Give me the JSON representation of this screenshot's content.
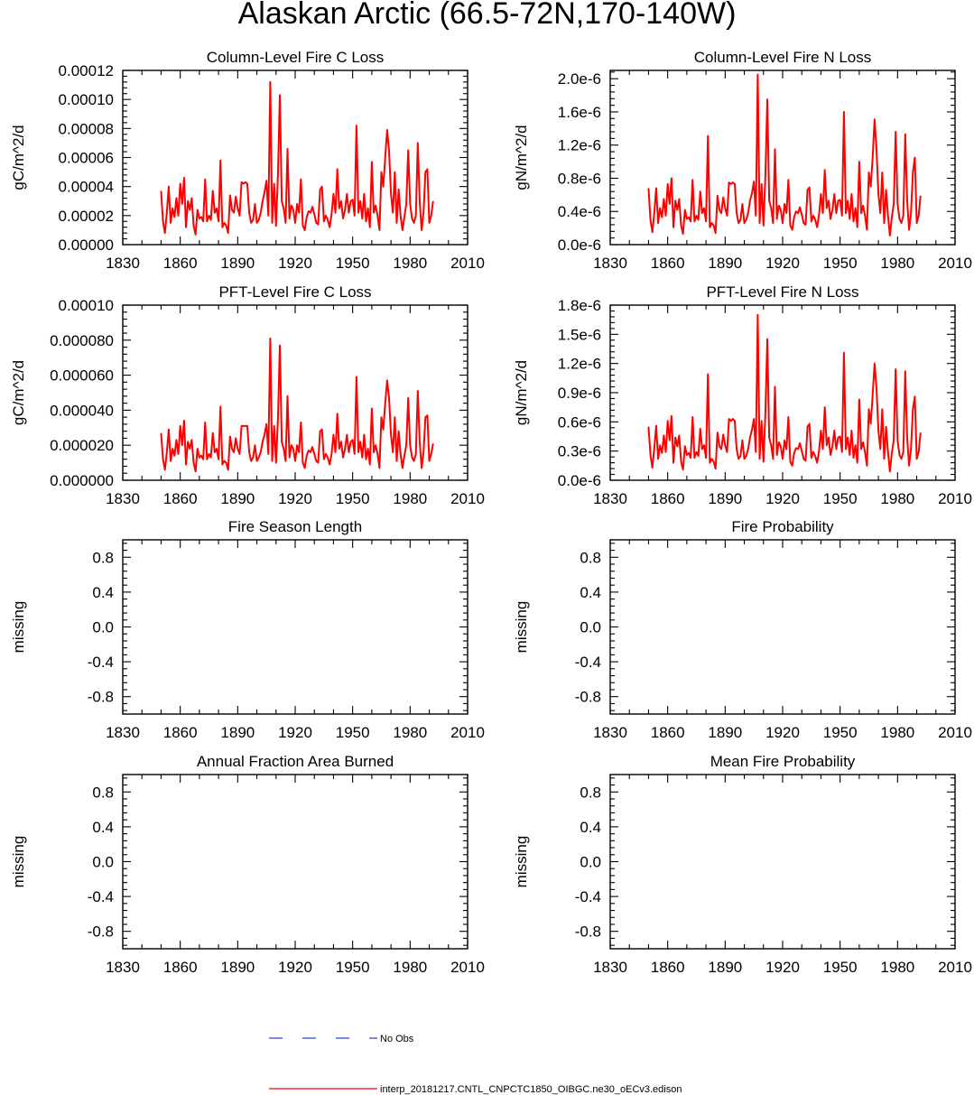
{
  "title": "Alaskan Arctic (66.5-72N,170-140W)",
  "colors": {
    "model_line": "#ff0000",
    "obs_line": "#2e44e6",
    "axis": "#000000"
  },
  "legend": {
    "obs_label": "No Obs",
    "model_label": "interp_20181217.CNTL_CNPCTC1850_OIBGC.ne30_oECv3.edison"
  },
  "chart_data": [
    {
      "type": "line",
      "title": "Column-Level Fire C Loss",
      "ylabel": "gC/m^2/d",
      "xlim": [
        1830,
        2010
      ],
      "x_ticks": [
        "1830",
        "1860",
        "1890",
        "1920",
        "1950",
        "1980",
        "2010"
      ],
      "ylim": [
        0,
        0.00012
      ],
      "y_ticks": [
        0,
        2e-05,
        4e-05,
        6e-05,
        8e-05,
        0.0001,
        0.00012
      ],
      "y_tick_labels": [
        "0.00000",
        "0.00002",
        "0.00004",
        "0.00006",
        "0.00008",
        "0.00010",
        "0.00012"
      ],
      "x_start": 1850,
      "series": [
        {
          "name": "interp_20181217.CNTL_CNPCTC1850_OIBGC.ne30_oECv3.edison",
          "values": [
            3.7e-05,
            1.6e-05,
            8e-06,
            2.2e-05,
            4e-05,
            1.5e-05,
            2.5e-05,
            1.9e-05,
            3.2e-05,
            2e-05,
            4.2e-05,
            2.8e-05,
            4.6e-05,
            1.2e-05,
            3e-05,
            2.4e-05,
            3.2e-05,
            1.3e-05,
            7e-06,
            2.4e-05,
            1.8e-05,
            1.9e-05,
            1.6e-05,
            4.5e-05,
            1.6e-05,
            2e-05,
            1.7e-05,
            3.7e-05,
            2.2e-05,
            2.5e-05,
            1.6e-05,
            5.8e-05,
            1.2e-05,
            1.5e-05,
            1.3e-05,
            8e-06,
            3.4e-05,
            2.4e-05,
            2.2e-05,
            3.3e-05,
            2.5e-05,
            2e-05,
            4.3e-05,
            4.2e-05,
            4.3e-05,
            4.2e-05,
            2.2e-05,
            1.5e-05,
            1.7e-05,
            2.8e-05,
            1.5e-05,
            1.7e-05,
            2.2e-05,
            3e-05,
            3.6e-05,
            4.4e-05,
            2e-05,
            0.000112,
            1.5e-05,
            4.2e-05,
            1.3e-05,
            4.8e-05,
            0.000103,
            3e-05,
            2.5e-05,
            1.5e-05,
            6.6e-05,
            1.8e-05,
            2.7e-05,
            2.4e-05,
            1.5e-05,
            2.8e-05,
            2.2e-05,
            4.5e-05,
            1.3e-05,
            1e-05,
            1.9e-05,
            2.3e-05,
            2.2e-05,
            2.6e-05,
            2.1e-05,
            1.5e-05,
            1.4e-05,
            3.8e-05,
            4e-05,
            1.6e-05,
            2e-05,
            1.7e-05,
            1.2e-05,
            2.1e-05,
            3.5e-05,
            2.2e-05,
            5.2e-05,
            2.5e-05,
            3e-05,
            1.8e-05,
            2.4e-05,
            3.5e-05,
            2.2e-05,
            3e-05,
            3.1e-05,
            2e-05,
            8.2e-05,
            2.2e-05,
            3e-05,
            1.8e-05,
            3.5e-05,
            1.6e-05,
            2.5e-05,
            1.2e-05,
            5.7e-05,
            2.2e-05,
            2.7e-05,
            2e-05,
            1e-05,
            5e-05,
            4e-05,
            6e-05,
            7.9e-05,
            6.5e-05,
            3.5e-05,
            2.2e-05,
            5e-05,
            1.5e-05,
            3.8e-05,
            2e-05,
            1e-05,
            1.9e-05,
            2.8e-05,
            6.5e-05,
            2.8e-05,
            1.8e-05,
            1.5e-05,
            2e-05,
            7e-05,
            3e-05,
            1e-05,
            2.2e-05,
            5e-05,
            5.2e-05,
            1.5e-05,
            2e-05,
            3e-05
          ]
        }
      ]
    },
    {
      "type": "line",
      "title": "Column-Level Fire N Loss",
      "ylabel": "gN/m^2/d",
      "xlim": [
        1830,
        2010
      ],
      "x_ticks": [
        "1830",
        "1860",
        "1890",
        "1920",
        "1950",
        "1980",
        "2010"
      ],
      "ylim": [
        0,
        2.1e-06
      ],
      "y_ticks": [
        0,
        4e-07,
        8e-07,
        1.2e-06,
        1.6e-06,
        2e-06
      ],
      "y_tick_labels": [
        "0.0e-6",
        "0.4e-6",
        "0.8e-6",
        "1.2e-6",
        "1.6e-6",
        "2.0e-6"
      ],
      "x_start": 1850,
      "series": [
        {
          "name": "interp_20181217.CNTL_CNPCTC1850_OIBGC.ne30_oECv3.edison",
          "values": [
            6.8e-07,
            3e-07,
            1.5e-07,
            3.8e-07,
            6.8e-07,
            2.6e-07,
            4.4e-07,
            3.3e-07,
            5.5e-07,
            3.5e-07,
            7.3e-07,
            4.9e-07,
            8e-07,
            2.1e-07,
            5.3e-07,
            4.2e-07,
            5.5e-07,
            2.3e-07,
            1.3e-07,
            4.2e-07,
            3.1e-07,
            3.3e-07,
            2.8e-07,
            7.8e-07,
            2.8e-07,
            3.5e-07,
            3e-07,
            6.4e-07,
            3.8e-07,
            4.4e-07,
            2.8e-07,
            1.31e-06,
            2.1e-07,
            2.6e-07,
            2.3e-07,
            1.4e-07,
            5.9e-07,
            4.2e-07,
            3.8e-07,
            5.7e-07,
            4.4e-07,
            3.5e-07,
            7.5e-07,
            7.3e-07,
            7.5e-07,
            7.3e-07,
            3.8e-07,
            2.6e-07,
            3e-07,
            4.9e-07,
            2.6e-07,
            3e-07,
            3.8e-07,
            5.3e-07,
            6.2e-07,
            7.6e-07,
            3.5e-07,
            2.05e-06,
            2.6e-07,
            7.3e-07,
            2.3e-07,
            8.3e-07,
            1.75e-06,
            5.3e-07,
            4.4e-07,
            2.6e-07,
            1.15e-06,
            3.1e-07,
            4.7e-07,
            4.2e-07,
            2.6e-07,
            4.9e-07,
            3.8e-07,
            7.8e-07,
            2.3e-07,
            1.8e-07,
            3.3e-07,
            4e-07,
            3.8e-07,
            4.5e-07,
            3.6e-07,
            2.6e-07,
            2.4e-07,
            6.6e-07,
            6.9e-07,
            2.8e-07,
            3.5e-07,
            3e-07,
            2.1e-07,
            3.6e-07,
            6.1e-07,
            3.8e-07,
            9e-07,
            4.4e-07,
            5.3e-07,
            3.1e-07,
            4.2e-07,
            6.1e-07,
            3.8e-07,
            5.3e-07,
            5.4e-07,
            3.5e-07,
            1.6e-06,
            3.8e-07,
            5.3e-07,
            3.1e-07,
            6.1e-07,
            2.8e-07,
            4.4e-07,
            2.1e-07,
            1e-06,
            3.8e-07,
            4.7e-07,
            3.5e-07,
            1.8e-07,
            8.7e-07,
            7e-07,
            1.05e-06,
            1.51e-06,
            1.15e-06,
            6.1e-07,
            3.8e-07,
            8.7e-07,
            2.6e-07,
            6.6e-07,
            3.5e-07,
            1.1e-07,
            3.3e-07,
            4.9e-07,
            1.36e-06,
            4.9e-07,
            3.1e-07,
            2.6e-07,
            3.5e-07,
            1.33e-06,
            5.3e-07,
            1.8e-07,
            3.8e-07,
            8.7e-07,
            1.05e-06,
            2.6e-07,
            3.5e-07,
            5.9e-07
          ]
        }
      ]
    },
    {
      "type": "line",
      "title": "PFT-Level Fire C Loss",
      "ylabel": "gC/m^2/d",
      "xlim": [
        1830,
        2010
      ],
      "x_ticks": [
        "1830",
        "1860",
        "1890",
        "1920",
        "1950",
        "1980",
        "2010"
      ],
      "ylim": [
        0,
        0.0001
      ],
      "y_ticks": [
        0,
        2e-05,
        4e-05,
        6e-05,
        8e-05,
        0.0001
      ],
      "y_tick_labels": [
        "0.000000",
        "0.000020",
        "0.000040",
        "0.000060",
        "0.000080",
        "0.00010"
      ],
      "x_start": 1850,
      "series": [
        {
          "name": "interp_20181217.CNTL_CNPCTC1850_OIBGC.ne30_oECv3.edison",
          "values": [
            2.7e-05,
            1.2e-05,
            6e-06,
            1.6e-05,
            2.9e-05,
            1.1e-05,
            1.8e-05,
            1.4e-05,
            2.3e-05,
            1.5e-05,
            3.1e-05,
            2e-05,
            3.4e-05,
            9e-06,
            2.2e-05,
            1.8e-05,
            2.3e-05,
            1e-05,
            5e-06,
            1.8e-05,
            1.3e-05,
            1.4e-05,
            1.2e-05,
            3.3e-05,
            1.2e-05,
            1.5e-05,
            1.3e-05,
            2.7e-05,
            1.6e-05,
            1.8e-05,
            1.2e-05,
            4.2e-05,
            9e-06,
            1.1e-05,
            1e-05,
            6e-06,
            2.5e-05,
            1.8e-05,
            1.6e-05,
            2.4e-05,
            1.8e-05,
            1.5e-05,
            3.1e-05,
            3.1e-05,
            3.1e-05,
            3.1e-05,
            1.6e-05,
            1.1e-05,
            1.3e-05,
            2e-05,
            1.1e-05,
            1.3e-05,
            1.6e-05,
            2.2e-05,
            2.6e-05,
            3.2e-05,
            1.5e-05,
            8.1e-05,
            1.1e-05,
            3.1e-05,
            1e-05,
            3.5e-05,
            7.7e-05,
            2.2e-05,
            1.8e-05,
            1.1e-05,
            4.8e-05,
            1.3e-05,
            2e-05,
            1.8e-05,
            1.1e-05,
            2e-05,
            1.6e-05,
            3.3e-05,
            1e-05,
            7e-06,
            1.4e-05,
            1.7e-05,
            1.6e-05,
            1.9e-05,
            1.5e-05,
            1.1e-05,
            1e-05,
            2.8e-05,
            2.9e-05,
            1.2e-05,
            1.5e-05,
            1.3e-05,
            9e-06,
            1.5e-05,
            2.6e-05,
            1.6e-05,
            3.8e-05,
            1.8e-05,
            2.2e-05,
            1.3e-05,
            1.8e-05,
            2.6e-05,
            1.6e-05,
            2.2e-05,
            2.3e-05,
            1.5e-05,
            5.9e-05,
            1.6e-05,
            2.2e-05,
            1.3e-05,
            2.6e-05,
            1.2e-05,
            1.8e-05,
            9e-06,
            4.1e-05,
            1.6e-05,
            2e-05,
            1.5e-05,
            7e-06,
            3.6e-05,
            2.9e-05,
            4.4e-05,
            5.7e-05,
            4.7e-05,
            2.6e-05,
            1.6e-05,
            3.6e-05,
            1.1e-05,
            2.8e-05,
            1.5e-05,
            7e-06,
            1.4e-05,
            2e-05,
            4.7e-05,
            2e-05,
            1.3e-05,
            1.1e-05,
            1.5e-05,
            5.1e-05,
            2.2e-05,
            7e-06,
            1.6e-05,
            3.6e-05,
            3.7e-05,
            1.1e-05,
            1.5e-05,
            2.1e-05
          ]
        }
      ]
    },
    {
      "type": "line",
      "title": "PFT-Level Fire N Loss",
      "ylabel": "gN/m^2/d",
      "xlim": [
        1830,
        2010
      ],
      "x_ticks": [
        "1830",
        "1860",
        "1890",
        "1920",
        "1950",
        "1980",
        "2010"
      ],
      "ylim": [
        0,
        1.8e-06
      ],
      "y_ticks": [
        0,
        3e-07,
        6e-07,
        9e-07,
        1.2e-06,
        1.5e-06,
        1.8e-06
      ],
      "y_tick_labels": [
        "0.0e-6",
        "0.3e-6",
        "0.6e-6",
        "0.9e-6",
        "1.2e-6",
        "1.5e-6",
        "1.8e-6"
      ],
      "x_start": 1850,
      "series": [
        {
          "name": "interp_20181217.CNTL_CNPCTC1850_OIBGC.ne30_oECv3.edison",
          "values": [
            5.5e-07,
            2.6e-07,
            1.3e-07,
            3.3e-07,
            5.6e-07,
            2.2e-07,
            3.6e-07,
            2.8e-07,
            4.6e-07,
            2.9e-07,
            6.1e-07,
            4.1e-07,
            6.6e-07,
            1.8e-07,
            4.4e-07,
            3.5e-07,
            4.6e-07,
            1.9e-07,
            1.1e-07,
            3.5e-07,
            2.6e-07,
            2.8e-07,
            2.3e-07,
            6.5e-07,
            2.3e-07,
            2.9e-07,
            2.5e-07,
            5.3e-07,
            3.2e-07,
            3.6e-07,
            2.3e-07,
            1.09e-06,
            1.8e-07,
            2.2e-07,
            1.9e-07,
            1.2e-07,
            4.9e-07,
            3.5e-07,
            3.2e-07,
            4.7e-07,
            3.6e-07,
            2.9e-07,
            6.3e-07,
            6.1e-07,
            6.3e-07,
            6.1e-07,
            3.2e-07,
            2.2e-07,
            2.5e-07,
            4.1e-07,
            2.2e-07,
            2.5e-07,
            3.2e-07,
            4.4e-07,
            5.2e-07,
            6.3e-07,
            2.9e-07,
            1.7e-06,
            2.2e-07,
            6.1e-07,
            1.9e-07,
            6.9e-07,
            1.45e-06,
            4.4e-07,
            3.6e-07,
            2.2e-07,
            9.6e-07,
            2.6e-07,
            3.9e-07,
            3.5e-07,
            2.2e-07,
            4.1e-07,
            3.2e-07,
            6.5e-07,
            1.9e-07,
            1.5e-07,
            2.8e-07,
            3.3e-07,
            3.2e-07,
            3.8e-07,
            3e-07,
            2.2e-07,
            2e-07,
            5.5e-07,
            5.8e-07,
            2.3e-07,
            2.9e-07,
            2.5e-07,
            1.8e-07,
            3e-07,
            5.1e-07,
            3.2e-07,
            7.5e-07,
            3.6e-07,
            4.4e-07,
            2.6e-07,
            3.5e-07,
            5.1e-07,
            3.2e-07,
            4.4e-07,
            4.5e-07,
            2.9e-07,
            1.31e-06,
            3.2e-07,
            4.4e-07,
            2.6e-07,
            5.1e-07,
            2.3e-07,
            3.6e-07,
            1.8e-07,
            8.3e-07,
            3.2e-07,
            3.9e-07,
            2.9e-07,
            1.5e-07,
            7.3e-07,
            5.8e-07,
            8.8e-07,
            1.2e-06,
            9.5e-07,
            5.1e-07,
            3.2e-07,
            7.3e-07,
            2.2e-07,
            5.5e-07,
            2.9e-07,
            9e-08,
            2.8e-07,
            4.1e-07,
            1.14e-06,
            4.1e-07,
            2.6e-07,
            2.2e-07,
            2.9e-07,
            1.12e-06,
            4.4e-07,
            1.5e-07,
            3.2e-07,
            7.3e-07,
            8.6e-07,
            2.2e-07,
            2.9e-07,
            4.9e-07
          ]
        }
      ]
    },
    {
      "type": "line",
      "title": "Fire Season Length",
      "ylabel": "missing",
      "xlim": [
        1830,
        2010
      ],
      "x_ticks": [
        "1830",
        "1860",
        "1890",
        "1920",
        "1950",
        "1980",
        "2010"
      ],
      "ylim": [
        -1,
        1
      ],
      "y_ticks": [
        -0.8,
        -0.4,
        0,
        0.4,
        0.8
      ],
      "y_tick_labels": [
        "-0.8",
        "-0.4",
        "0.0",
        "0.4",
        "0.8"
      ],
      "series": []
    },
    {
      "type": "line",
      "title": "Fire Probability",
      "ylabel": "missing",
      "xlim": [
        1830,
        2010
      ],
      "x_ticks": [
        "1830",
        "1860",
        "1890",
        "1920",
        "1950",
        "1980",
        "2010"
      ],
      "ylim": [
        -1,
        1
      ],
      "y_ticks": [
        -0.8,
        -0.4,
        0,
        0.4,
        0.8
      ],
      "y_tick_labels": [
        "-0.8",
        "-0.4",
        "0.0",
        "0.4",
        "0.8"
      ],
      "series": []
    },
    {
      "type": "line",
      "title": "Annual Fraction Area Burned",
      "ylabel": "missing",
      "xlim": [
        1830,
        2010
      ],
      "x_ticks": [
        "1830",
        "1860",
        "1890",
        "1920",
        "1950",
        "1980",
        "2010"
      ],
      "ylim": [
        -1,
        1
      ],
      "y_ticks": [
        -0.8,
        -0.4,
        0,
        0.4,
        0.8
      ],
      "y_tick_labels": [
        "-0.8",
        "-0.4",
        "0.0",
        "0.4",
        "0.8"
      ],
      "series": []
    },
    {
      "type": "line",
      "title": "Mean Fire Probability",
      "ylabel": "missing",
      "xlim": [
        1830,
        2010
      ],
      "x_ticks": [
        "1830",
        "1860",
        "1890",
        "1920",
        "1950",
        "1980",
        "2010"
      ],
      "ylim": [
        -1,
        1
      ],
      "y_ticks": [
        -0.8,
        -0.4,
        0,
        0.4,
        0.8
      ],
      "y_tick_labels": [
        "-0.8",
        "-0.4",
        "0.0",
        "0.4",
        "0.8"
      ],
      "series": []
    }
  ]
}
